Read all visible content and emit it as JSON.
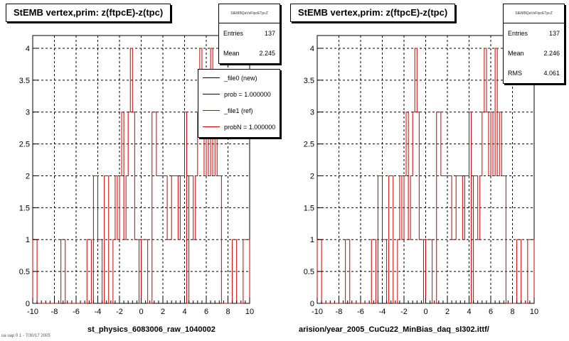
{
  "panels": [
    {
      "title": "StEMB  vertex,prim: z(ftpcE)-z(tpc)",
      "stats_header": "StEMBQaVsFtpcETpcZ",
      "stats": [
        {
          "label": "Entries",
          "value": "137"
        },
        {
          "label": "Mean",
          "value": "2.245"
        }
      ],
      "legend": [
        {
          "label": "_file0 (new)",
          "color": "#000000"
        },
        {
          "label": "prob = 1.000000",
          "color": "#000000"
        },
        {
          "label": "_file1 (ref)",
          "color": "#cc0000"
        },
        {
          "label": "probN = 1.000000",
          "color": "#cc0000"
        }
      ],
      "xlabel": "st_physics_6083006_raw_1040002"
    },
    {
      "title": "StEMB  vertex,prim: z(ftpcE)-z(tpc)",
      "stats_header": "StEMBQaVsFtpcETpcZ",
      "stats": [
        {
          "label": "Entries",
          "value": "137"
        },
        {
          "label": "Mean",
          "value": "2.246"
        },
        {
          "label": "RMS",
          "value": "4.061"
        }
      ],
      "xlabel": "arision/year_2005_CuCu22_MinBias_daq_sl302.ittf/"
    }
  ],
  "corner_text": "ua uap 0 1 - 7/30/17 2005",
  "chart_data": [
    {
      "type": "bar",
      "title": "StEMB  vertex,prim: z(ftpcE)-z(tpc)",
      "xlabel": "st_physics_6083006_raw_1040002",
      "ylabel": "",
      "xlim": [
        -10,
        10
      ],
      "ylim": [
        0,
        4.2
      ],
      "xticks": [
        -10,
        -8,
        -6,
        -4,
        -2,
        0,
        2,
        4,
        6,
        8,
        10
      ],
      "yticks": [
        0,
        0.5,
        1,
        1.5,
        2,
        2.5,
        3,
        3.5,
        4
      ],
      "grid": true,
      "bin_width": 0.2,
      "series": [
        {
          "name": "_file1 (ref)",
          "color": "#cc0000",
          "bins_x": [
            -9.9,
            -9.7,
            -7.3,
            -7.1,
            -4.9,
            -4.7,
            -4.3,
            -4.1,
            -3.9,
            -3.7,
            -3.3,
            -3.1,
            -2.5,
            -2.3,
            -2.1,
            -1.9,
            -1.7,
            -1.5,
            -1.3,
            -1.1,
            -0.9,
            -0.7,
            -0.5,
            -0.3,
            0.1,
            0.3,
            0.5,
            1.1,
            1.3,
            1.5,
            1.7,
            1.9,
            2.1,
            2.3,
            2.5,
            2.7,
            2.9,
            3.1,
            3.3,
            3.5,
            3.7,
            3.9,
            4.1,
            4.5,
            4.7,
            4.9,
            5.1,
            5.3,
            5.5,
            5.7,
            5.9,
            6.1,
            6.3,
            6.5,
            6.7,
            6.9,
            7.1,
            7.3,
            8.5,
            8.7,
            9.5,
            9.7,
            9.9
          ],
          "values": [
            1,
            1,
            1,
            1,
            1,
            1,
            2,
            2,
            1,
            1,
            2,
            2,
            1,
            2,
            1,
            2,
            3,
            1,
            2,
            3,
            4,
            3,
            1,
            1,
            1,
            1,
            1,
            3,
            3,
            2,
            2,
            2,
            2,
            2,
            1,
            1,
            2,
            2,
            2,
            1,
            2,
            2,
            3,
            2,
            2,
            1,
            2,
            3,
            4,
            3,
            2,
            3,
            2,
            4,
            2,
            3,
            2,
            2,
            1,
            1,
            1,
            1,
            1
          ]
        }
      ]
    },
    {
      "type": "bar",
      "title": "StEMB  vertex,prim: z(ftpcE)-z(tpc)",
      "xlabel": "arision/year_2005_CuCu22_MinBias_daq_sl302.ittf/",
      "ylabel": "",
      "xlim": [
        -10,
        10
      ],
      "ylim": [
        0,
        4.2
      ],
      "xticks": [
        -10,
        -8,
        -6,
        -4,
        -2,
        0,
        2,
        4,
        6,
        8,
        10
      ],
      "yticks": [
        0,
        0.5,
        1,
        1.5,
        2,
        2.5,
        3,
        3.5,
        4
      ],
      "grid": true,
      "bin_width": 0.2,
      "series": [
        {
          "name": "",
          "color": "#cc0000",
          "bins_x": [
            -9.9,
            -9.7,
            -7.3,
            -7.1,
            -4.9,
            -4.7,
            -4.3,
            -4.1,
            -3.9,
            -3.7,
            -3.3,
            -3.1,
            -2.5,
            -2.3,
            -2.1,
            -1.9,
            -1.7,
            -1.5,
            -1.3,
            -1.1,
            -0.9,
            -0.7,
            -0.5,
            -0.3,
            0.1,
            0.3,
            0.5,
            1.1,
            1.3,
            1.5,
            1.7,
            1.9,
            2.1,
            2.3,
            2.5,
            2.7,
            2.9,
            3.1,
            3.3,
            3.5,
            3.7,
            3.9,
            4.1,
            4.5,
            4.7,
            4.9,
            5.1,
            5.3,
            5.5,
            5.7,
            5.9,
            6.1,
            6.3,
            6.5,
            6.7,
            6.9,
            7.1,
            7.3,
            8.5,
            8.7,
            9.5,
            9.7,
            9.9
          ],
          "values": [
            1,
            1,
            1,
            1,
            1,
            1,
            2,
            2,
            1,
            1,
            2,
            2,
            1,
            2,
            1,
            2,
            3,
            1,
            2,
            3,
            4,
            3,
            1,
            1,
            1,
            1,
            1,
            3,
            3,
            2,
            2,
            2,
            2,
            2,
            1,
            1,
            2,
            2,
            2,
            1,
            2,
            2,
            3,
            2,
            2,
            1,
            2,
            3,
            4,
            3,
            2,
            3,
            2,
            4,
            2,
            3,
            2,
            2,
            1,
            1,
            1,
            1,
            1
          ]
        }
      ]
    }
  ]
}
